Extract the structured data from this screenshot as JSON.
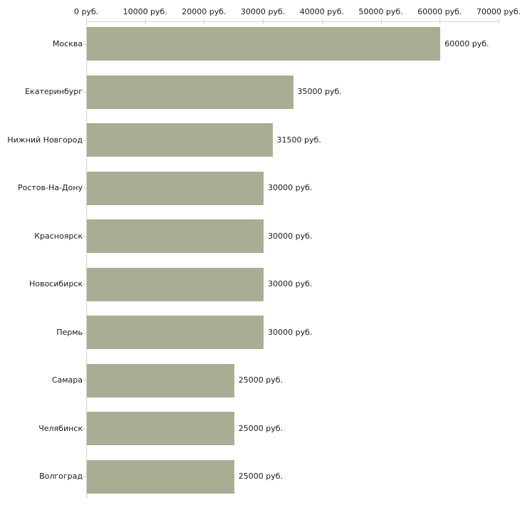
{
  "chart_data": {
    "type": "bar",
    "orientation": "horizontal",
    "title": "",
    "xlabel": "",
    "ylabel": "",
    "unit": "руб.",
    "categories": [
      "Москва",
      "Екатеринбург",
      "Нижний Новгород",
      "Ростов-На-Дону",
      "Красноярск",
      "Новосибирск",
      "Пермь",
      "Самара",
      "Челябинск",
      "Волгоград"
    ],
    "values": [
      60000,
      35000,
      31500,
      30000,
      30000,
      30000,
      30000,
      25000,
      25000,
      25000
    ],
    "value_labels": [
      "60000 руб.",
      "35000 руб.",
      "31500 руб.",
      "30000 руб.",
      "30000 руб.",
      "30000 руб.",
      "30000 руб.",
      "25000 руб.",
      "25000 руб.",
      "25000 руб."
    ],
    "x_ticks": [
      0,
      10000,
      20000,
      30000,
      40000,
      50000,
      60000,
      70000
    ],
    "x_tick_labels": [
      "0 руб.",
      "10000 руб.",
      "20000 руб.",
      "30000 руб.",
      "40000 руб.",
      "50000 руб.",
      "60000 руб.",
      "70000 руб."
    ],
    "xlim": [
      0,
      70000
    ],
    "grid": false,
    "legend": null,
    "colors": {
      "bar": "#a8ae94",
      "axis": "#d4d4c4",
      "tick": "#d4d4c4",
      "text": "#1a1a1a",
      "background": "#ffffff"
    }
  }
}
